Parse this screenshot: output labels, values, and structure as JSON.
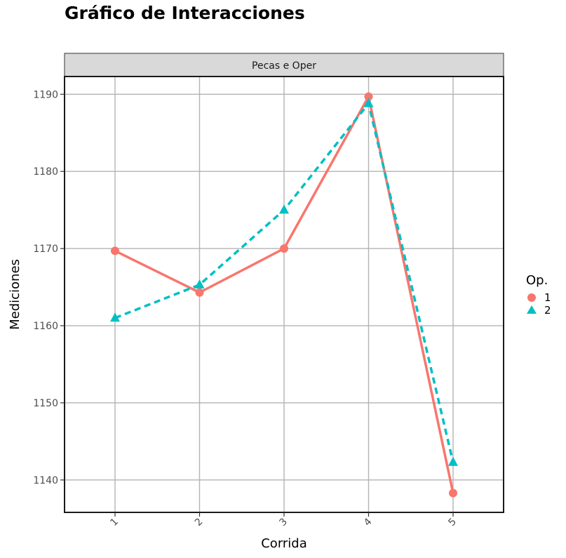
{
  "chart_data": {
    "type": "line",
    "title": "Gráfico de Interacciones",
    "facet_label": "Pecas e Oper",
    "xlabel": "Corrida",
    "ylabel": "Mediciones",
    "categories": [
      "1",
      "2",
      "3",
      "4",
      "5"
    ],
    "yticks": [
      1140,
      1150,
      1160,
      1170,
      1180,
      1190
    ],
    "ylim": [
      1135.8,
      1192.3
    ],
    "grid": true,
    "legend_title": "Op.",
    "legend_position": "right",
    "series": [
      {
        "name": "1",
        "values": [
          1169.7,
          1164.3,
          1170.0,
          1189.7,
          1138.3
        ],
        "color": "#F8766D",
        "line_style": "solid",
        "marker": "circle"
      },
      {
        "name": "2",
        "values": [
          1161.0,
          1165.3,
          1175.0,
          1188.8,
          1142.3
        ],
        "color": "#00BFC4",
        "line_style": "dashed",
        "marker": "triangle"
      }
    ]
  }
}
